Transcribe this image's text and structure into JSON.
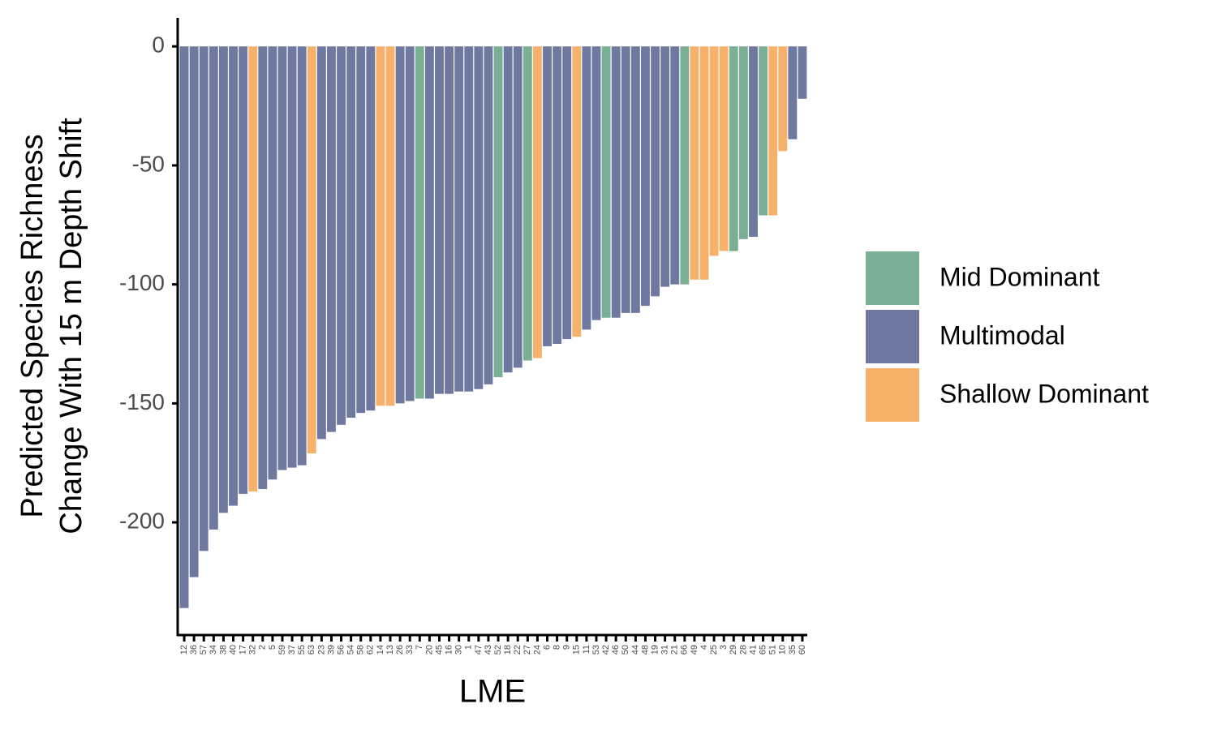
{
  "chart_data": {
    "type": "bar",
    "xlabel": "LME",
    "ylabel": [
      "Predicted Species Richness",
      "Change With 15 m Depth Shift"
    ],
    "categories": [
      "12",
      "36",
      "57",
      "34",
      "38",
      "40",
      "17",
      "32",
      "2",
      "5",
      "59",
      "37",
      "55",
      "63",
      "23",
      "39",
      "56",
      "54",
      "58",
      "62",
      "14",
      "13",
      "26",
      "33",
      "7",
      "20",
      "45",
      "16",
      "30",
      "1",
      "47",
      "43",
      "52",
      "18",
      "22",
      "27",
      "24",
      "6",
      "8",
      "9",
      "15",
      "11",
      "53",
      "42",
      "46",
      "50",
      "44",
      "48",
      "19",
      "31",
      "21",
      "66",
      "49",
      "4",
      "25",
      "3",
      "29",
      "28",
      "41",
      "65",
      "51",
      "10",
      "35",
      "60"
    ],
    "series": [
      {
        "name": "Mid Dominant",
        "color": "#7aaf96",
        "values": [
          null,
          null,
          null,
          null,
          null,
          null,
          null,
          null,
          null,
          null,
          null,
          null,
          null,
          null,
          null,
          null,
          null,
          null,
          null,
          null,
          null,
          null,
          null,
          null,
          -148,
          null,
          null,
          null,
          null,
          null,
          null,
          null,
          -139,
          null,
          null,
          -132,
          null,
          null,
          null,
          null,
          null,
          null,
          null,
          -114,
          null,
          null,
          null,
          null,
          null,
          null,
          null,
          -100,
          null,
          null,
          null,
          null,
          -86,
          -81,
          null,
          -71,
          null,
          null,
          null,
          null
        ]
      },
      {
        "name": "Multimodal",
        "color": "#6f789f",
        "values": [
          -236,
          -223,
          -212,
          -203,
          -196,
          -193,
          -188,
          null,
          -186,
          -182,
          -178,
          -177,
          -176,
          null,
          -165,
          -162,
          -159,
          -156,
          -154,
          -153,
          null,
          null,
          -150,
          -149,
          null,
          -148,
          -146,
          -146,
          -145,
          -145,
          -144,
          -142,
          null,
          -137,
          -135,
          null,
          null,
          -126,
          -125,
          -123,
          null,
          -119,
          -115,
          null,
          -114,
          -112,
          -112,
          -109,
          -105,
          -101,
          -100,
          null,
          null,
          null,
          null,
          null,
          null,
          null,
          -80,
          null,
          null,
          null,
          -39,
          -22
        ]
      },
      {
        "name": "Shallow Dominant",
        "color": "#f6b26b",
        "values": [
          null,
          null,
          null,
          null,
          null,
          null,
          null,
          -187,
          null,
          null,
          null,
          null,
          null,
          -171,
          null,
          null,
          null,
          null,
          null,
          null,
          -151,
          -151,
          null,
          null,
          null,
          null,
          null,
          null,
          null,
          null,
          null,
          null,
          null,
          null,
          null,
          null,
          -131,
          null,
          null,
          null,
          -122,
          null,
          null,
          null,
          null,
          null,
          null,
          null,
          null,
          null,
          null,
          null,
          -98,
          -98,
          -88,
          -86,
          null,
          null,
          null,
          null,
          -71,
          -44,
          null,
          null
        ]
      }
    ],
    "ylim": [
      -247,
      12
    ],
    "yticks": [
      -200,
      -150,
      -100,
      -50,
      0
    ],
    "legend": "right"
  }
}
